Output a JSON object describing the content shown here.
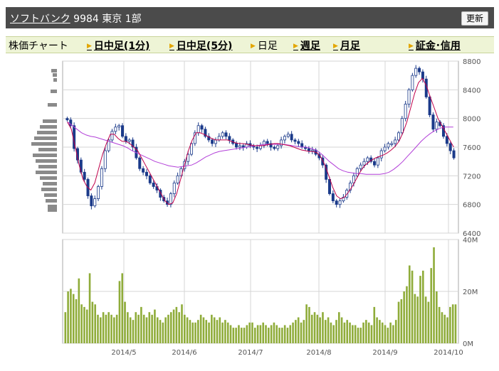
{
  "header": {
    "company_name": "ソフトバンク",
    "code": "9984",
    "market": "東京 1部",
    "refresh_label": "更新"
  },
  "tabs": {
    "current_label": "株価チャート",
    "intraday1": "日中足(1分)",
    "intraday5": "日中足(5分)",
    "daily": "日足",
    "weekly": "週足",
    "monthly": "月足",
    "margin": "証金･信用"
  },
  "colors": {
    "up": "#ffffff",
    "down": "#1b3a8a",
    "ma_short": "#c0004a",
    "ma_long": "#b23fd8",
    "volume": "#8fac3a",
    "grid": "#d6d6d6"
  },
  "chart_data": [
    {
      "type": "candlestick",
      "yticks": [
        "8800",
        "8400",
        "8000",
        "7600",
        "7200",
        "6800",
        "6400"
      ],
      "ylim": [
        6400,
        8800
      ],
      "xticks": [
        "2014/5",
        "2014/6",
        "2014/7",
        "2014/8",
        "2014/9",
        "2014/10"
      ],
      "closes": [
        7980,
        7900,
        7580,
        7420,
        7250,
        7150,
        6920,
        6780,
        6880,
        7050,
        7300,
        7550,
        7700,
        7820,
        7880,
        7900,
        7750,
        7680,
        7700,
        7600,
        7450,
        7300,
        7250,
        7200,
        7100,
        7050,
        7000,
        6900,
        6850,
        6800,
        6950,
        7100,
        7200,
        7300,
        7400,
        7500,
        7650,
        7800,
        7900,
        7850,
        7750,
        7700,
        7650,
        7700,
        7750,
        7800,
        7750,
        7700,
        7650,
        7600,
        7620,
        7600,
        7650,
        7620,
        7600,
        7580,
        7620,
        7680,
        7650,
        7600,
        7580,
        7620,
        7700,
        7750,
        7780,
        7700,
        7680,
        7650,
        7600,
        7580,
        7550,
        7560,
        7500,
        7450,
        7350,
        7150,
        6950,
        6850,
        6800,
        6850,
        6900,
        7000,
        7100,
        7200,
        7300,
        7350,
        7400,
        7450,
        7400,
        7350,
        7450,
        7550,
        7600,
        7650,
        7650,
        7700,
        7800,
        8000,
        8200,
        8400,
        8600,
        8700,
        8650,
        8550,
        8300,
        8050,
        7850,
        7950,
        7900,
        7750,
        7650,
        7550,
        7450
      ],
      "ma_short": [
        7950,
        7850,
        7600,
        7350,
        7150,
        7050,
        7000,
        7100,
        7300,
        7500,
        7650,
        7780,
        7780,
        7720,
        7680,
        7680,
        7650,
        7600,
        7550,
        7450,
        7350,
        7250,
        7150,
        7050,
        6950,
        6850,
        6800,
        6820,
        6950,
        7150,
        7350,
        7550,
        7700,
        7800,
        7800,
        7780,
        7750,
        7720,
        7700,
        7700,
        7700,
        7700,
        7680,
        7660,
        7650,
        7650,
        7640,
        7630,
        7620,
        7620,
        7620,
        7630,
        7640,
        7650,
        7650,
        7640,
        7630,
        7620,
        7600,
        7580,
        7560,
        7550,
        7540,
        7540,
        7520,
        7460,
        7350,
        7200,
        7040,
        6920,
        6880,
        6900,
        6970,
        7050,
        7150,
        7250,
        7330,
        7380,
        7420,
        7450,
        7470,
        7490,
        7520,
        7560,
        7610,
        7680,
        7800,
        7950,
        8150,
        8350,
        8500,
        8560,
        8460,
        8300,
        8150,
        8000,
        7900,
        7800,
        7700,
        7600
      ],
      "ma_long": [
        7950,
        7900,
        7850,
        7800,
        7770,
        7750,
        7740,
        7720,
        7700,
        7680,
        7660,
        7640,
        7620,
        7590,
        7550,
        7520,
        7490,
        7460,
        7430,
        7400,
        7380,
        7360,
        7340,
        7330,
        7320,
        7330,
        7340,
        7350,
        7380,
        7420,
        7460,
        7490,
        7520,
        7540,
        7550,
        7560,
        7570,
        7580,
        7590,
        7600,
        7610,
        7620,
        7630,
        7640,
        7640,
        7640,
        7640,
        7640,
        7630,
        7620,
        7610,
        7600,
        7600,
        7580,
        7560,
        7520,
        7460,
        7400,
        7350,
        7300,
        7270,
        7250,
        7240,
        7230,
        7230,
        7220,
        7220,
        7220,
        7220,
        7230,
        7250,
        7290,
        7340,
        7400,
        7470,
        7540,
        7610,
        7680,
        7740,
        7790,
        7830,
        7860,
        7880,
        7880,
        7880
      ]
    },
    {
      "type": "bar",
      "yticks": [
        "40M",
        "20M",
        "0M"
      ],
      "ylim": [
        0,
        40
      ],
      "values": [
        12,
        20,
        21,
        19,
        17,
        25,
        15,
        14,
        13,
        27,
        16,
        15,
        11,
        10,
        12,
        11,
        12,
        11,
        10,
        11,
        24,
        27,
        16,
        12,
        10,
        9,
        12,
        11,
        14,
        11,
        10,
        12,
        11,
        13,
        10,
        9,
        8,
        10,
        11,
        12,
        13,
        14,
        12,
        15,
        11,
        10,
        9,
        8,
        8,
        9,
        11,
        10,
        9,
        8,
        11,
        10,
        9,
        10,
        8,
        9,
        8,
        7,
        6,
        6,
        7,
        6,
        6,
        7,
        8,
        8,
        6,
        7,
        7,
        8,
        7,
        6,
        7,
        8,
        7,
        6,
        6,
        7,
        6,
        7,
        8,
        9,
        10,
        8,
        9,
        15,
        14,
        11,
        12,
        11,
        10,
        12,
        9,
        10,
        8,
        7,
        9,
        12,
        10,
        8,
        9,
        8,
        7,
        7,
        6,
        6,
        8,
        9,
        8,
        7,
        14,
        10,
        9,
        8,
        7,
        6,
        8,
        7,
        9,
        16,
        17,
        20,
        22,
        30,
        28,
        19,
        18,
        26,
        28,
        18,
        16,
        29,
        37,
        20,
        14,
        12,
        11,
        10,
        14,
        15,
        15
      ]
    }
  ]
}
